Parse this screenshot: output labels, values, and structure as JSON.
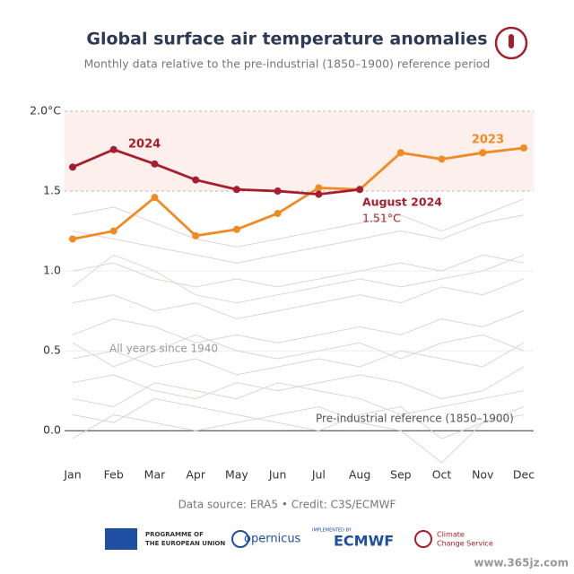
{
  "chart_data": {
    "type": "line",
    "title": "Global surface air temperature anomalies",
    "subtitle": "Monthly data relative to the pre-industrial (1850–1900) reference period",
    "categories": [
      "Jan",
      "Feb",
      "Mar",
      "Apr",
      "May",
      "Jun",
      "Jul",
      "Aug",
      "Sep",
      "Oct",
      "Nov",
      "Dec"
    ],
    "series": [
      {
        "name": "2024",
        "color": "#a51e2d",
        "values": [
          1.65,
          1.76,
          1.67,
          1.57,
          1.51,
          1.5,
          1.48,
          1.51,
          null,
          null,
          null,
          null
        ],
        "value_labels": [
          null,
          null,
          null,
          null,
          null,
          null,
          null,
          "1.51°C",
          null,
          null,
          null,
          null
        ]
      },
      {
        "name": "2023",
        "color": "#f08a24",
        "values": [
          1.2,
          1.25,
          1.46,
          1.22,
          1.26,
          1.36,
          1.52,
          1.51,
          1.74,
          1.7,
          1.74,
          1.77
        ]
      }
    ],
    "background_name": "All years since 1940",
    "background_color": "#e3d3d1",
    "background_series": [
      [
        0.1,
        0.05,
        0.2,
        0.15,
        0.1,
        0.05,
        0.0,
        0.1,
        0.15,
        -0.05,
        0.05,
        0.1
      ],
      [
        0.3,
        0.35,
        0.25,
        0.2,
        0.3,
        0.25,
        0.3,
        0.35,
        0.3,
        0.2,
        0.25,
        0.4
      ],
      [
        0.45,
        0.5,
        0.4,
        0.45,
        0.35,
        0.4,
        0.45,
        0.4,
        0.5,
        0.45,
        0.4,
        0.55
      ],
      [
        0.6,
        0.7,
        0.65,
        0.55,
        0.6,
        0.55,
        0.6,
        0.65,
        0.6,
        0.7,
        0.65,
        0.75
      ],
      [
        0.8,
        0.85,
        0.75,
        0.8,
        0.7,
        0.75,
        0.8,
        0.85,
        0.8,
        0.9,
        0.85,
        0.95
      ],
      [
        1.0,
        1.05,
        0.95,
        0.9,
        0.95,
        0.9,
        0.95,
        1.0,
        1.05,
        1.0,
        1.1,
        1.05
      ],
      [
        1.25,
        1.2,
        1.15,
        1.1,
        1.05,
        1.1,
        1.15,
        1.2,
        1.25,
        1.2,
        1.3,
        1.35
      ],
      [
        0.2,
        0.15,
        0.3,
        0.25,
        0.2,
        0.3,
        0.25,
        0.2,
        0.1,
        0.15,
        0.2,
        0.25
      ],
      [
        -0.05,
        0.1,
        0.05,
        0.0,
        0.05,
        0.1,
        0.15,
        0.05,
        0.0,
        -0.2,
        0.05,
        0.15
      ],
      [
        0.55,
        0.4,
        0.5,
        0.6,
        0.5,
        0.45,
        0.5,
        0.55,
        0.45,
        0.55,
        0.6,
        0.5
      ],
      [
        0.9,
        1.1,
        1.0,
        0.85,
        0.8,
        0.85,
        0.9,
        0.95,
        0.9,
        0.95,
        1.0,
        1.1
      ],
      [
        1.35,
        1.4,
        1.3,
        1.2,
        1.15,
        1.2,
        1.25,
        1.3,
        1.35,
        1.25,
        1.35,
        1.45
      ]
    ],
    "ylim": [
      -0.1,
      2.0
    ],
    "yticks": [
      {
        "value": 0,
        "label": "0.0"
      },
      0.5,
      {
        "value": 1,
        "label": "1.0"
      },
      1.5,
      {
        "value": 2,
        "label": "2.0°C"
      }
    ],
    "band": [
      1.5,
      2.0
    ],
    "grid": true,
    "annotations": {
      "highlight": "August 2024",
      "reference": "Pre-industrial reference (1850–1900)"
    },
    "source": "Data source: ERA5 • Credit: C3S/ECMWF"
  },
  "footer": {
    "eu": [
      "PROGRAMME OF",
      "THE EUROPEAN UNION"
    ],
    "copernicus": "opernicus",
    "implemented": "IMPLEMENTED BY",
    "ecmwf": "ECMWF",
    "c3s": [
      "Climate",
      "Change Service"
    ],
    "watermark": "www.365jz.com"
  }
}
